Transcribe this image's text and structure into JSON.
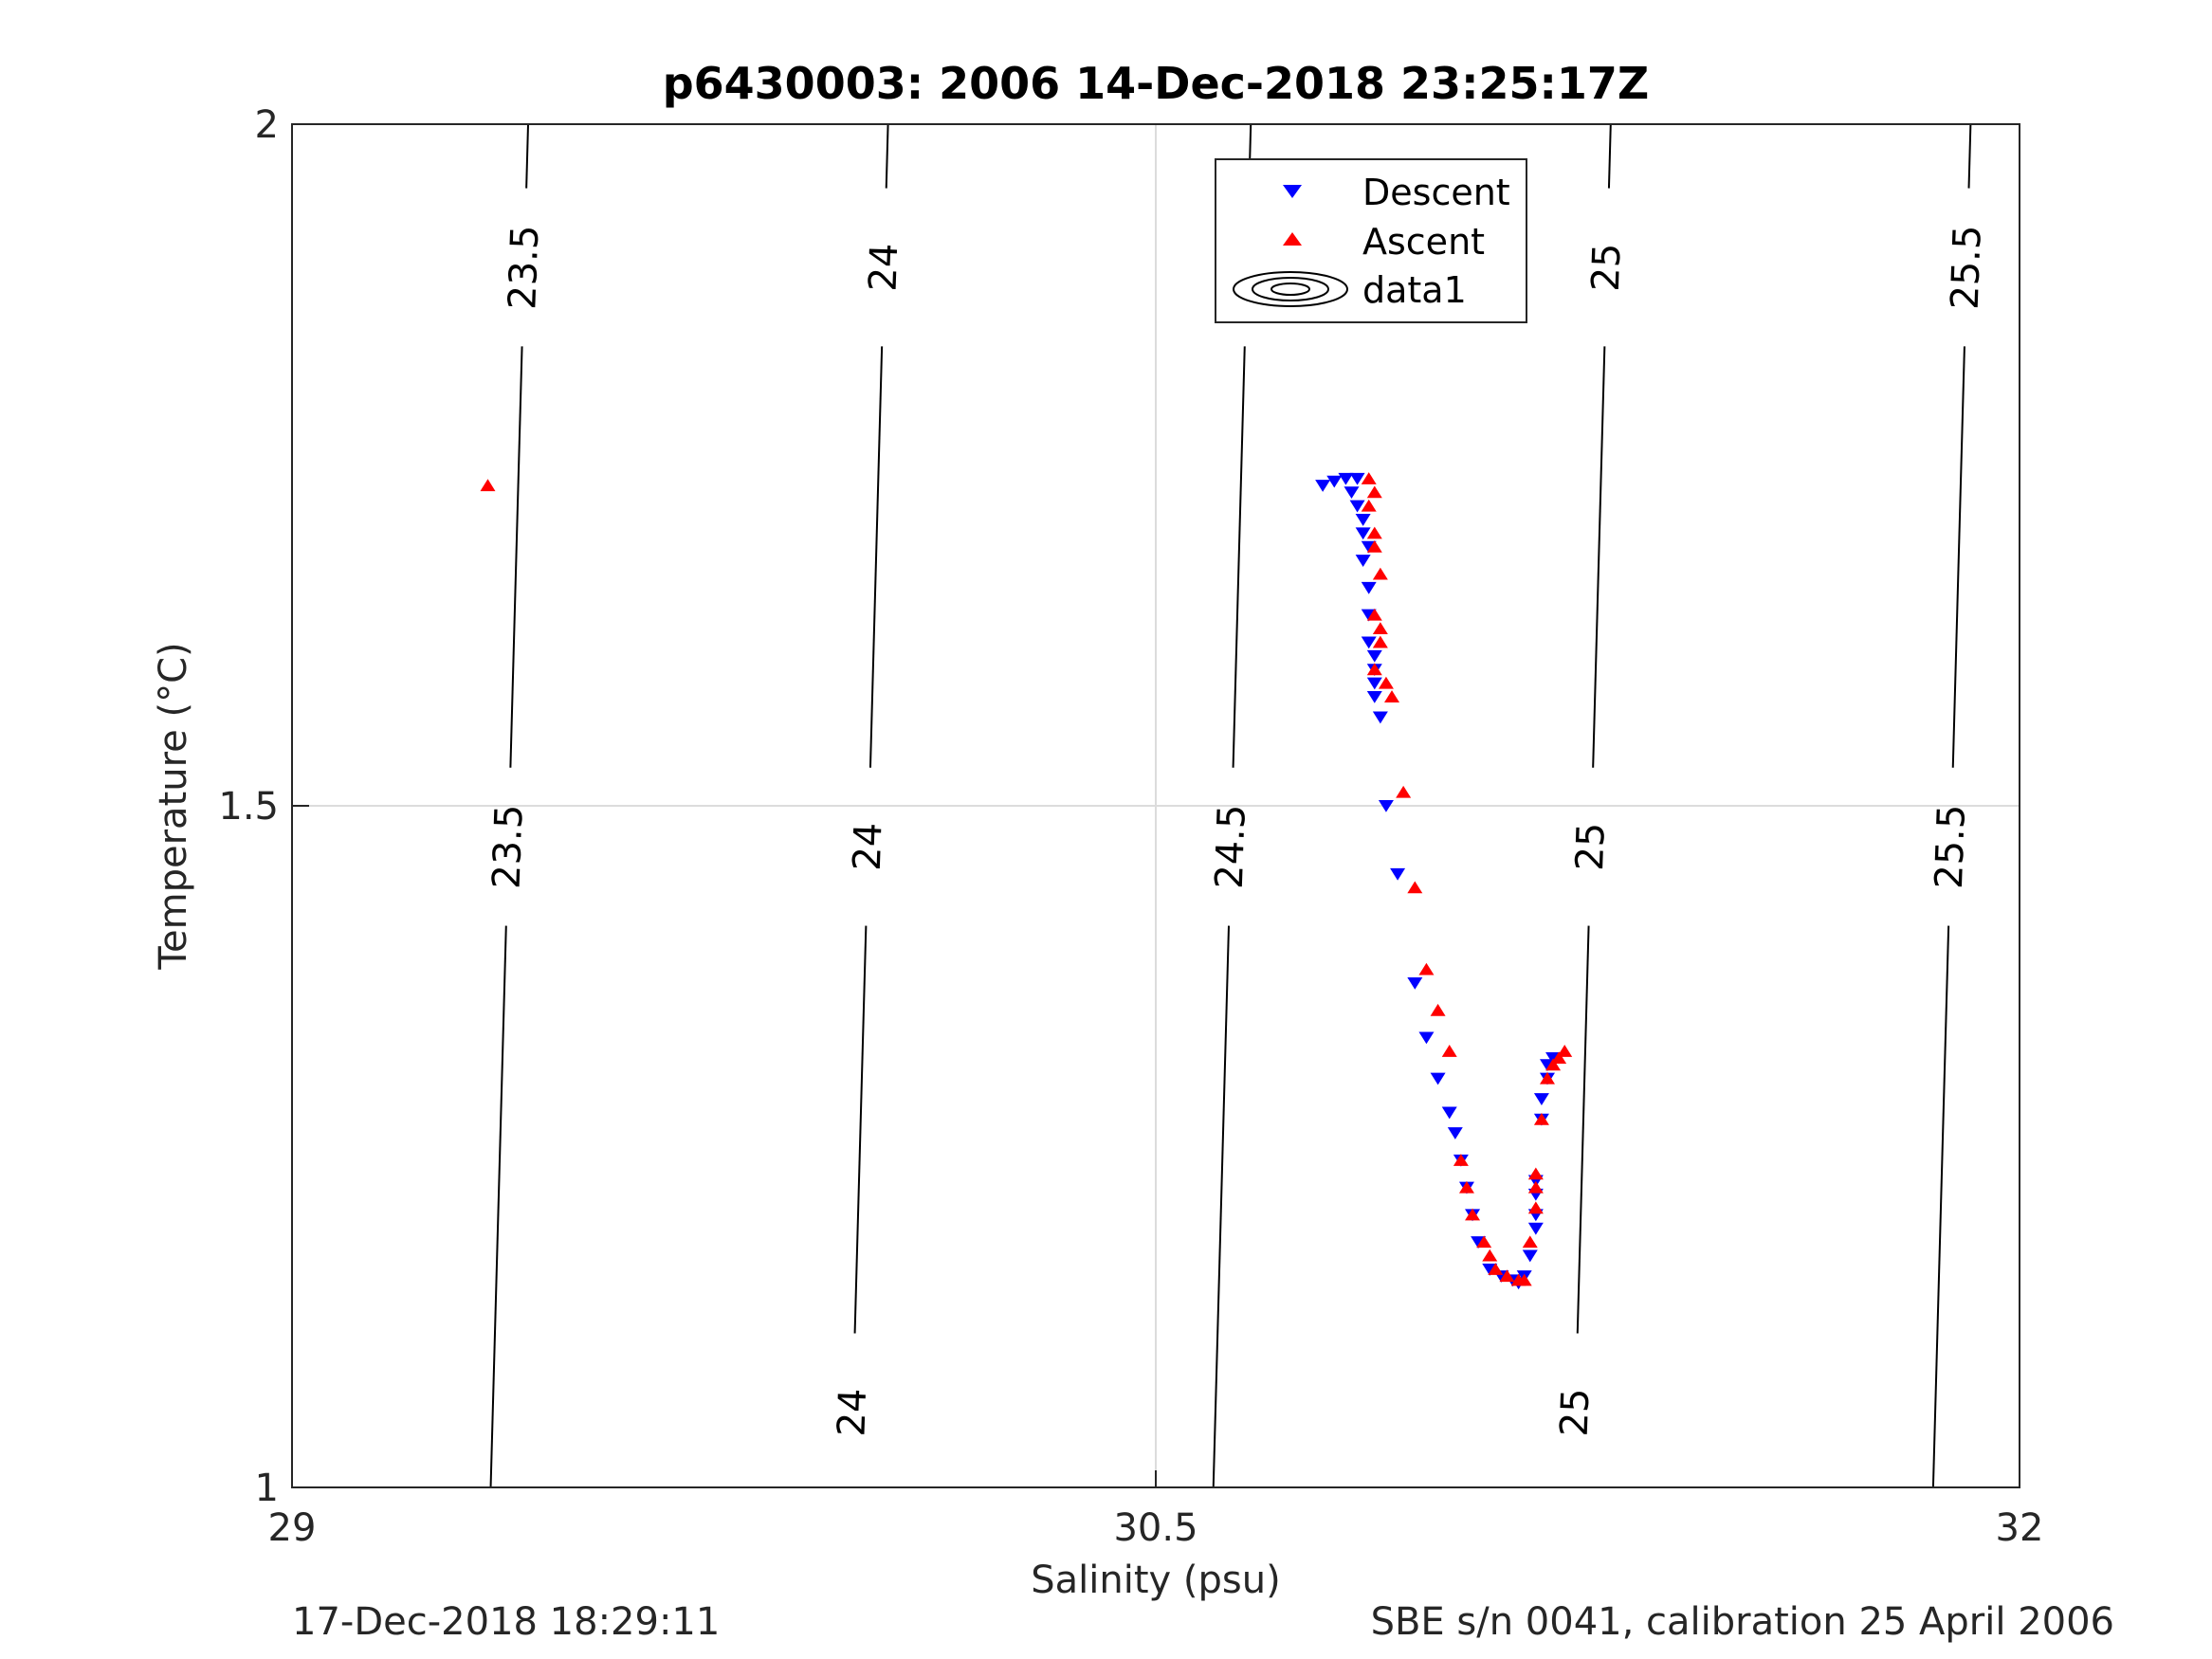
{
  "chart_data": {
    "type": "scatter",
    "title": "p6430003:  2006 14-Dec-2018 23:25:17Z",
    "xlabel": "Salinity (psu)",
    "ylabel": "Temperature (°C)",
    "xlim": [
      29,
      32
    ],
    "ylim": [
      1,
      2
    ],
    "xticks": [
      "29",
      "30.5",
      "32"
    ],
    "yticks": [
      "1",
      "1.5",
      "2"
    ],
    "grid": true,
    "legend_position": "top-center",
    "legend": [
      "Descent",
      "Ascent",
      "data1"
    ],
    "colors": {
      "descent": "#0000ff",
      "ascent": "#ff0000",
      "contour": "#000000",
      "grid": "#dcdcdc"
    },
    "series": [
      {
        "name": "Descent",
        "marker": "triangle-down",
        "points": [
          [
            30.79,
            1.735
          ],
          [
            30.81,
            1.738
          ],
          [
            30.83,
            1.74
          ],
          [
            30.85,
            1.74
          ],
          [
            30.84,
            1.73
          ],
          [
            30.85,
            1.72
          ],
          [
            30.86,
            1.71
          ],
          [
            30.86,
            1.7
          ],
          [
            30.87,
            1.69
          ],
          [
            30.86,
            1.68
          ],
          [
            30.87,
            1.66
          ],
          [
            30.87,
            1.64
          ],
          [
            30.87,
            1.62
          ],
          [
            30.88,
            1.61
          ],
          [
            30.88,
            1.6
          ],
          [
            30.88,
            1.59
          ],
          [
            30.88,
            1.58
          ],
          [
            30.89,
            1.565
          ],
          [
            30.9,
            1.5
          ],
          [
            30.92,
            1.45
          ],
          [
            30.95,
            1.37
          ],
          [
            30.97,
            1.33
          ],
          [
            30.99,
            1.3
          ],
          [
            31.01,
            1.275
          ],
          [
            31.02,
            1.26
          ],
          [
            31.03,
            1.24
          ],
          [
            31.04,
            1.22
          ],
          [
            31.05,
            1.2
          ],
          [
            31.06,
            1.18
          ],
          [
            31.08,
            1.16
          ],
          [
            31.1,
            1.155
          ],
          [
            31.12,
            1.152
          ],
          [
            31.13,
            1.15
          ],
          [
            31.14,
            1.155
          ],
          [
            31.15,
            1.17
          ],
          [
            31.16,
            1.19
          ],
          [
            31.16,
            1.2
          ],
          [
            31.16,
            1.215
          ],
          [
            31.16,
            1.225
          ],
          [
            31.17,
            1.27
          ],
          [
            31.17,
            1.285
          ],
          [
            31.18,
            1.3
          ],
          [
            31.18,
            1.31
          ],
          [
            31.19,
            1.315
          ]
        ]
      },
      {
        "name": "Ascent",
        "marker": "triangle-up",
        "points": [
          [
            29.34,
            1.735
          ],
          [
            30.87,
            1.74
          ],
          [
            30.88,
            1.73
          ],
          [
            30.87,
            1.72
          ],
          [
            30.88,
            1.7
          ],
          [
            30.88,
            1.69
          ],
          [
            30.89,
            1.67
          ],
          [
            30.88,
            1.64
          ],
          [
            30.89,
            1.63
          ],
          [
            30.89,
            1.62
          ],
          [
            30.88,
            1.6
          ],
          [
            30.9,
            1.59
          ],
          [
            30.91,
            1.58
          ],
          [
            30.93,
            1.51
          ],
          [
            30.95,
            1.44
          ],
          [
            30.97,
            1.38
          ],
          [
            30.99,
            1.35
          ],
          [
            31.01,
            1.32
          ],
          [
            31.03,
            1.24
          ],
          [
            31.04,
            1.22
          ],
          [
            31.05,
            1.2
          ],
          [
            31.07,
            1.18
          ],
          [
            31.08,
            1.17
          ],
          [
            31.09,
            1.16
          ],
          [
            31.11,
            1.155
          ],
          [
            31.13,
            1.152
          ],
          [
            31.14,
            1.152
          ],
          [
            31.15,
            1.18
          ],
          [
            31.16,
            1.205
          ],
          [
            31.16,
            1.22
          ],
          [
            31.16,
            1.23
          ],
          [
            31.17,
            1.27
          ],
          [
            31.18,
            1.3
          ],
          [
            31.19,
            1.31
          ],
          [
            31.2,
            1.315
          ],
          [
            31.21,
            1.32
          ]
        ]
      }
    ],
    "contours": [
      {
        "level": "23.5",
        "x_top": 29.41,
        "x_bottom": 29.345,
        "labels_at_y": [
          1.895,
          1.47
        ]
      },
      {
        "level": "24",
        "x_top": 30.035,
        "x_bottom": 29.97,
        "labels_at_y": [
          1.895,
          1.47,
          1.055
        ]
      },
      {
        "level": "24.5",
        "x_top": 30.665,
        "x_bottom": 30.6,
        "labels_at_y": [
          1.895,
          1.47
        ]
      },
      {
        "level": "25",
        "x_top": 31.29,
        "x_bottom": 31.225,
        "labels_at_y": [
          1.895,
          1.47,
          1.055
        ]
      },
      {
        "level": "25.5",
        "x_top": 31.915,
        "x_bottom": 31.85,
        "labels_at_y": [
          1.895,
          1.47
        ]
      }
    ]
  },
  "footer": {
    "left": "17-Dec-2018 18:29:11",
    "right": "SBE s/n 0041, calibration 25 April 2006"
  }
}
